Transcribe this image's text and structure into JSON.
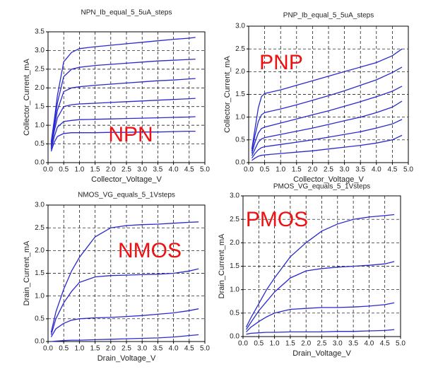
{
  "chart_data": [
    {
      "type": "line",
      "title": "NPN_Ib_equal_5_5uA_steps",
      "x_label": "Collector_Voltage_V",
      "y_label": "Collector_Current_mA",
      "annotation": "NPN",
      "grid": true,
      "xlim": [
        0,
        5
      ],
      "ylim": [
        0,
        3.5
      ],
      "xticks": [
        {
          "value": 0,
          "label": "0.0"
        },
        0.5,
        {
          "value": 1,
          "label": "1.0"
        },
        1.5,
        {
          "value": 2,
          "label": "2.0"
        },
        2.5,
        {
          "value": 3,
          "label": "3.0"
        },
        3.5,
        {
          "value": 4,
          "label": "4.0"
        },
        4.5,
        {
          "value": 5,
          "label": "5.0"
        }
      ],
      "yticks": [
        {
          "value": 0,
          "label": "0.0"
        },
        0.5,
        {
          "value": 1,
          "label": "1.0"
        },
        1.5,
        {
          "value": 2,
          "label": "2.0"
        },
        2.5,
        {
          "value": 3,
          "label": "3.0"
        },
        3.5
      ],
      "x": [
        0.1,
        0.2,
        0.3,
        0.5,
        0.75,
        1,
        1.5,
        2,
        2.5,
        3,
        3.5,
        4,
        4.5,
        4.7
      ],
      "series": [
        {
          "color": "#2a2ad0",
          "values": [
            0.3,
            0.55,
            0.7,
            0.78,
            0.8,
            0.8,
            0.8,
            0.81,
            0.81,
            0.82,
            0.82,
            0.83,
            0.84,
            0.84
          ]
        },
        {
          "color": "#2a2ad0",
          "values": [
            0.35,
            0.7,
            0.95,
            1.1,
            1.13,
            1.15,
            1.16,
            1.17,
            1.18,
            1.19,
            1.2,
            1.21,
            1.22,
            1.23
          ]
        },
        {
          "color": "#2a2ad0",
          "values": [
            0.4,
            0.85,
            1.2,
            1.5,
            1.55,
            1.57,
            1.59,
            1.61,
            1.63,
            1.65,
            1.67,
            1.69,
            1.71,
            1.72
          ]
        },
        {
          "color": "#2a2ad0",
          "values": [
            0.45,
            0.95,
            1.4,
            1.9,
            2.0,
            2.03,
            2.07,
            2.1,
            2.13,
            2.16,
            2.19,
            2.21,
            2.24,
            2.25
          ]
        },
        {
          "color": "#2a2ad0",
          "values": [
            0.5,
            1.05,
            1.6,
            2.3,
            2.5,
            2.55,
            2.6,
            2.63,
            2.66,
            2.69,
            2.72,
            2.74,
            2.76,
            2.77
          ]
        },
        {
          "color": "#2a2ad0",
          "values": [
            0.55,
            1.15,
            1.8,
            2.7,
            2.95,
            3.05,
            3.1,
            3.14,
            3.18,
            3.22,
            3.26,
            3.3,
            3.33,
            3.35
          ]
        }
      ]
    },
    {
      "type": "line",
      "title": "PNP_Ib_equal_5_5uA_steps",
      "x_label": "Collector_Voltage_V",
      "y_label": "Collector_Current_mA",
      "annotation": "PNP",
      "grid": true,
      "xlim": [
        0,
        5
      ],
      "ylim": [
        0,
        3
      ],
      "xticks": [
        {
          "value": 0,
          "label": "0.0"
        },
        0.5,
        {
          "value": 1,
          "label": "1.0"
        },
        1.5,
        {
          "value": 2,
          "label": "2.0"
        },
        2.5,
        {
          "value": 3,
          "label": "3.0"
        },
        3.5,
        {
          "value": 4,
          "label": "4.0"
        },
        4.5,
        {
          "value": 5,
          "label": "5.0"
        }
      ],
      "yticks": [
        {
          "value": 0,
          "label": "0.0"
        },
        0.5,
        {
          "value": 1,
          "label": "1.0"
        },
        1.5,
        {
          "value": 2,
          "label": "2.0"
        },
        2.5,
        {
          "value": 3,
          "label": "3.0"
        }
      ],
      "x": [
        0.1,
        0.2,
        0.3,
        0.4,
        0.5,
        1,
        1.5,
        2,
        2.5,
        3,
        3.5,
        4,
        4.5,
        4.8
      ],
      "series": [
        {
          "color": "#2a2ad0",
          "values": [
            0.05,
            0.1,
            0.14,
            0.16,
            0.17,
            0.2,
            0.23,
            0.26,
            0.3,
            0.34,
            0.38,
            0.43,
            0.5,
            0.6
          ]
        },
        {
          "color": "#2a2ad0",
          "values": [
            0.1,
            0.2,
            0.28,
            0.33,
            0.35,
            0.4,
            0.45,
            0.5,
            0.56,
            0.62,
            0.68,
            0.76,
            0.85,
            0.95
          ]
        },
        {
          "color": "#2a2ad0",
          "values": [
            0.15,
            0.3,
            0.45,
            0.52,
            0.55,
            0.62,
            0.69,
            0.76,
            0.84,
            0.92,
            1.0,
            1.1,
            1.22,
            1.35
          ]
        },
        {
          "color": "#2a2ad0",
          "values": [
            0.2,
            0.45,
            0.65,
            0.75,
            0.78,
            0.87,
            0.96,
            1.05,
            1.14,
            1.24,
            1.34,
            1.45,
            1.57,
            1.68
          ]
        },
        {
          "color": "#2a2ad0",
          "values": [
            0.25,
            0.6,
            0.9,
            1.05,
            1.1,
            1.18,
            1.27,
            1.37,
            1.47,
            1.58,
            1.7,
            1.82,
            1.98,
            2.1
          ]
        },
        {
          "color": "#2a2ad0",
          "values": [
            0.3,
            0.75,
            1.2,
            1.45,
            1.52,
            1.6,
            1.7,
            1.8,
            1.9,
            2.0,
            2.1,
            2.2,
            2.35,
            2.5
          ]
        }
      ]
    },
    {
      "type": "line",
      "title": "NMOS_VG_equals_5_1Vsteps",
      "x_label": "Drain_Voltage_V",
      "y_label": "Drain_Current_mA",
      "annotation": "NMOS",
      "grid": true,
      "xlim": [
        0,
        5
      ],
      "ylim": [
        0,
        3
      ],
      "xticks": [
        {
          "value": 0,
          "label": "0.0"
        },
        0.5,
        {
          "value": 1,
          "label": "1.0"
        },
        1.5,
        {
          "value": 2,
          "label": "2.0"
        },
        2.5,
        {
          "value": 3,
          "label": "3.0"
        },
        3.5,
        {
          "value": 4,
          "label": "4.0"
        },
        4.5,
        {
          "value": 5,
          "label": "5.0"
        }
      ],
      "yticks": [
        {
          "value": 0,
          "label": "0.0"
        },
        0.5,
        {
          "value": 1,
          "label": "1.0"
        },
        1.5,
        {
          "value": 2,
          "label": "2.0"
        },
        2.5,
        {
          "value": 3,
          "label": "3.0"
        }
      ],
      "x": [
        0.1,
        0.25,
        0.5,
        0.75,
        1,
        1.5,
        2,
        2.5,
        3,
        3.5,
        4,
        4.5,
        4.8
      ],
      "series": [
        {
          "color": "#2a2ad0",
          "values": [
            0.0,
            0.01,
            0.02,
            0.03,
            0.03,
            0.04,
            0.05,
            0.06,
            0.07,
            0.08,
            0.1,
            0.13,
            0.15
          ]
        },
        {
          "color": "#2a2ad0",
          "values": [
            0.1,
            0.28,
            0.4,
            0.47,
            0.5,
            0.52,
            0.53,
            0.55,
            0.57,
            0.6,
            0.63,
            0.68,
            0.72
          ]
        },
        {
          "color": "#2a2ad0",
          "values": [
            0.15,
            0.5,
            0.85,
            1.1,
            1.3,
            1.42,
            1.45,
            1.46,
            1.47,
            1.48,
            1.5,
            1.55,
            1.6
          ]
        },
        {
          "color": "#2a2ad0",
          "values": [
            0.2,
            0.65,
            1.15,
            1.55,
            1.85,
            2.3,
            2.5,
            2.55,
            2.57,
            2.58,
            2.6,
            2.62,
            2.63
          ]
        }
      ]
    },
    {
      "type": "line",
      "title": "PMOS_VG_equals_5_1Vsteps",
      "x_label": "Drain_Voltage_V",
      "y_label": "Drain_Current_mA",
      "annotation": "PMOS",
      "grid": true,
      "xlim": [
        0,
        5
      ],
      "ylim": [
        0,
        3
      ],
      "xticks": [
        {
          "value": 0,
          "label": "0.0"
        },
        0.5,
        {
          "value": 1,
          "label": "1.0"
        },
        1.5,
        {
          "value": 2,
          "label": "2.0"
        },
        2.5,
        {
          "value": 3,
          "label": "3.0"
        },
        3.5,
        {
          "value": 4,
          "label": "4.0"
        },
        4.5,
        {
          "value": 5,
          "label": "5.0"
        }
      ],
      "yticks": [
        {
          "value": 0,
          "label": "0.0"
        },
        0.5,
        {
          "value": 1,
          "label": "1.0"
        },
        1.5,
        {
          "value": 2,
          "label": "2.0"
        },
        2.5,
        {
          "value": 3,
          "label": "3.0"
        }
      ],
      "x": [
        0.1,
        0.25,
        0.5,
        0.75,
        1,
        1.5,
        2,
        2.5,
        3,
        3.5,
        4,
        4.5,
        4.8
      ],
      "series": [
        {
          "color": "#2a2ad0",
          "values": [
            0.05,
            0.07,
            0.08,
            0.09,
            0.09,
            0.1,
            0.1,
            0.1,
            0.11,
            0.11,
            0.12,
            0.13,
            0.15
          ]
        },
        {
          "color": "#2a2ad0",
          "values": [
            0.1,
            0.2,
            0.32,
            0.42,
            0.5,
            0.58,
            0.6,
            0.62,
            0.62,
            0.63,
            0.65,
            0.68,
            0.72
          ]
        },
        {
          "color": "#2a2ad0",
          "values": [
            0.15,
            0.3,
            0.55,
            0.75,
            0.95,
            1.25,
            1.4,
            1.45,
            1.48,
            1.5,
            1.52,
            1.55,
            1.6
          ]
        },
        {
          "color": "#2a2ad0",
          "values": [
            0.2,
            0.4,
            0.7,
            1.0,
            1.25,
            1.7,
            2.0,
            2.25,
            2.4,
            2.5,
            2.55,
            2.58,
            2.6
          ]
        }
      ]
    }
  ]
}
